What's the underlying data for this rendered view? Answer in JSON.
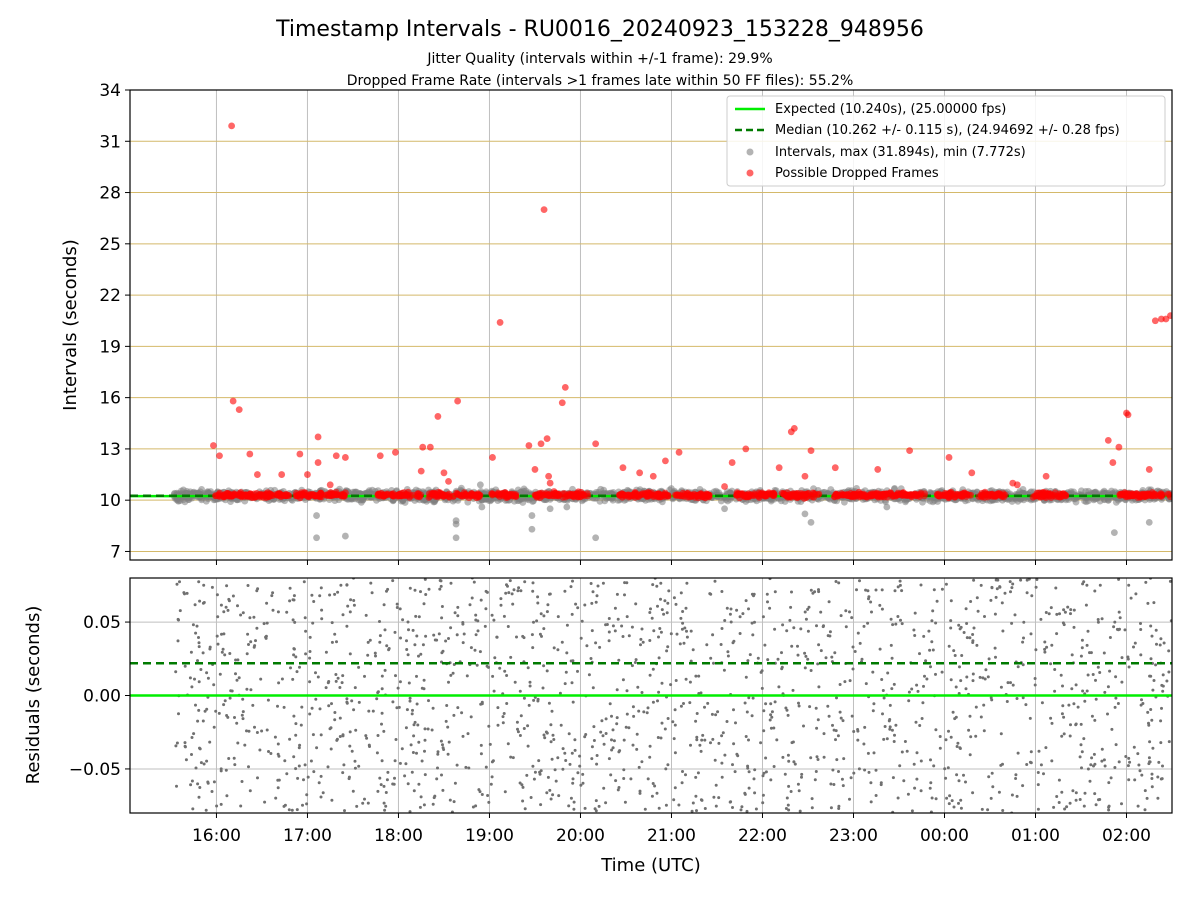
{
  "figure": {
    "title": "Timestamp Intervals - RU0016_20240923_153228_948956",
    "subtitle1": "Jitter Quality (intervals within +/-1 frame): 29.9%",
    "subtitle2": "Dropped Frame Rate (intervals >1 frames late within 50 FF files): 55.2%",
    "xlabel": "Time (UTC)"
  },
  "colors": {
    "expected": "#00ee00",
    "median": "#007a00",
    "intervals": "#808080",
    "dropped": "#ff0000",
    "hgrid_top": "#d4b96a",
    "vgrid": "#bfbfbf"
  },
  "chart_data": [
    {
      "type": "scatter",
      "panel": "top",
      "ylabel": "Intervals (seconds)",
      "xlim": [
        "15:03",
        "02:30"
      ],
      "ylim": [
        6.5,
        34
      ],
      "yticks": [
        7,
        10,
        13,
        16,
        19,
        22,
        25,
        28,
        31,
        34
      ],
      "xticks": [
        "16:00",
        "17:00",
        "18:00",
        "19:00",
        "20:00",
        "21:00",
        "22:00",
        "23:00",
        "00:00",
        "01:00",
        "02:00"
      ],
      "grid": "on",
      "legend_position": "top-right",
      "legend": [
        "Expected (10.240s), (25.00000 fps)",
        "Median (10.262 +/- 0.115 s), (24.94692 +/- 0.28 fps)",
        "Intervals, max (31.894s), min (7.772s)",
        "Possible Dropped Frames"
      ],
      "series": [
        {
          "name": "Expected (10.240s), (25.00000 fps)",
          "kind": "hline",
          "y": 10.24
        },
        {
          "name": "Median (10.262 +/- 0.115 s), (24.94692 +/- 0.28 fps)",
          "kind": "hline-dashed",
          "y": 10.262
        },
        {
          "name": "Intervals, max (31.894s), min (7.772s)",
          "kind": "scatter",
          "band": {
            "x_start": "15:32",
            "x_end": "02:30",
            "y_center": 10.26,
            "y_spread": 0.15
          },
          "points": [
            {
              "x": "17:06",
              "y": 9.1
            },
            {
              "x": "17:06",
              "y": 7.8
            },
            {
              "x": "17:25",
              "y": 7.9
            },
            {
              "x": "18:38",
              "y": 8.8
            },
            {
              "x": "18:38",
              "y": 8.6
            },
            {
              "x": "18:38",
              "y": 7.8
            },
            {
              "x": "18:54",
              "y": 10.9
            },
            {
              "x": "18:55",
              "y": 9.6
            },
            {
              "x": "19:28",
              "y": 9.1
            },
            {
              "x": "19:28",
              "y": 8.3
            },
            {
              "x": "19:40",
              "y": 9.5
            },
            {
              "x": "19:51",
              "y": 9.6
            },
            {
              "x": "20:10",
              "y": 7.8
            },
            {
              "x": "21:35",
              "y": 9.5
            },
            {
              "x": "22:28",
              "y": 9.2
            },
            {
              "x": "22:32",
              "y": 8.7
            },
            {
              "x": "23:22",
              "y": 9.6
            },
            {
              "x": "01:52",
              "y": 8.1
            },
            {
              "x": "02:15",
              "y": 8.7
            }
          ]
        },
        {
          "name": "Possible Dropped Frames",
          "kind": "scatter",
          "bands": [
            {
              "x_start": "15:59",
              "x_end": "16:49",
              "y": 10.3
            },
            {
              "x_start": "16:52",
              "x_end": "17:26",
              "y": 10.3
            },
            {
              "x_start": "17:45",
              "x_end": "17:57",
              "y": 10.3
            },
            {
              "x_start": "17:59",
              "x_end": "18:15",
              "y": 10.3
            },
            {
              "x_start": "18:20",
              "x_end": "18:54",
              "y": 10.3
            },
            {
              "x_start": "19:01",
              "x_end": "19:18",
              "y": 10.3
            },
            {
              "x_start": "19:30",
              "x_end": "20:05",
              "y": 10.3
            },
            {
              "x_start": "20:25",
              "x_end": "20:58",
              "y": 10.3
            },
            {
              "x_start": "21:02",
              "x_end": "21:25",
              "y": 10.3
            },
            {
              "x_start": "21:40",
              "x_end": "22:08",
              "y": 10.3
            },
            {
              "x_start": "22:12",
              "x_end": "22:38",
              "y": 10.3
            },
            {
              "x_start": "22:46",
              "x_end": "23:13",
              "y": 10.3
            },
            {
              "x_start": "23:13",
              "x_end": "23:47",
              "y": 10.3
            },
            {
              "x_start": "23:55",
              "x_end": "00:18",
              "y": 10.3
            },
            {
              "x_start": "00:22",
              "x_end": "00:40",
              "y": 10.3
            },
            {
              "x_start": "00:58",
              "x_end": "01:20",
              "y": 10.3
            },
            {
              "x_start": "01:55",
              "x_end": "02:30",
              "y": 10.3
            }
          ],
          "points": [
            {
              "x": "15:58",
              "y": 13.2
            },
            {
              "x": "16:02",
              "y": 12.6
            },
            {
              "x": "16:10",
              "y": 31.9
            },
            {
              "x": "16:11",
              "y": 15.8
            },
            {
              "x": "16:15",
              "y": 15.3
            },
            {
              "x": "16:22",
              "y": 12.7
            },
            {
              "x": "16:27",
              "y": 11.5
            },
            {
              "x": "16:43",
              "y": 11.5
            },
            {
              "x": "16:55",
              "y": 12.7
            },
            {
              "x": "17:00",
              "y": 11.5
            },
            {
              "x": "17:07",
              "y": 13.7
            },
            {
              "x": "17:07",
              "y": 12.2
            },
            {
              "x": "17:15",
              "y": 10.9
            },
            {
              "x": "17:19",
              "y": 12.6
            },
            {
              "x": "17:25",
              "y": 12.5
            },
            {
              "x": "17:48",
              "y": 12.6
            },
            {
              "x": "17:58",
              "y": 12.8
            },
            {
              "x": "18:15",
              "y": 11.7
            },
            {
              "x": "18:16",
              "y": 13.1
            },
            {
              "x": "18:21",
              "y": 13.1
            },
            {
              "x": "18:26",
              "y": 14.9
            },
            {
              "x": "18:30",
              "y": 11.6
            },
            {
              "x": "18:33",
              "y": 11.1
            },
            {
              "x": "18:39",
              "y": 15.8
            },
            {
              "x": "19:02",
              "y": 12.5
            },
            {
              "x": "19:07",
              "y": 20.4
            },
            {
              "x": "19:26",
              "y": 13.2
            },
            {
              "x": "19:30",
              "y": 11.8
            },
            {
              "x": "19:34",
              "y": 13.3
            },
            {
              "x": "19:36",
              "y": 27.0
            },
            {
              "x": "19:38",
              "y": 13.6
            },
            {
              "x": "19:39",
              "y": 11.4
            },
            {
              "x": "19:40",
              "y": 11.0
            },
            {
              "x": "19:48",
              "y": 15.7
            },
            {
              "x": "19:50",
              "y": 16.6
            },
            {
              "x": "20:10",
              "y": 13.3
            },
            {
              "x": "20:28",
              "y": 11.9
            },
            {
              "x": "20:39",
              "y": 11.6
            },
            {
              "x": "20:48",
              "y": 11.4
            },
            {
              "x": "20:56",
              "y": 12.3
            },
            {
              "x": "21:05",
              "y": 12.8
            },
            {
              "x": "21:35",
              "y": 10.8
            },
            {
              "x": "21:40",
              "y": 12.2
            },
            {
              "x": "21:49",
              "y": 13.0
            },
            {
              "x": "22:11",
              "y": 11.9
            },
            {
              "x": "22:19",
              "y": 14.0
            },
            {
              "x": "22:21",
              "y": 14.2
            },
            {
              "x": "22:28",
              "y": 11.4
            },
            {
              "x": "22:32",
              "y": 12.9
            },
            {
              "x": "22:48",
              "y": 11.9
            },
            {
              "x": "23:16",
              "y": 11.8
            },
            {
              "x": "23:37",
              "y": 12.9
            },
            {
              "x": "00:03",
              "y": 12.5
            },
            {
              "x": "00:18",
              "y": 11.6
            },
            {
              "x": "00:45",
              "y": 11.0
            },
            {
              "x": "00:48",
              "y": 10.9
            },
            {
              "x": "01:07",
              "y": 11.4
            },
            {
              "x": "01:48",
              "y": 13.5
            },
            {
              "x": "01:51",
              "y": 12.2
            },
            {
              "x": "01:55",
              "y": 13.1
            },
            {
              "x": "02:00",
              "y": 15.1
            },
            {
              "x": "02:01",
              "y": 15.0
            },
            {
              "x": "02:15",
              "y": 11.8
            },
            {
              "x": "02:19",
              "y": 20.5
            },
            {
              "x": "02:23",
              "y": 20.6
            },
            {
              "x": "02:26",
              "y": 20.6
            },
            {
              "x": "02:29",
              "y": 20.8
            }
          ]
        }
      ]
    },
    {
      "type": "scatter",
      "panel": "bottom",
      "ylabel": "Residuals (seconds)",
      "xlabel": "Time (UTC)",
      "xlim": [
        "15:03",
        "02:30"
      ],
      "ylim": [
        -0.08,
        0.08
      ],
      "yticks": [
        -0.05,
        0.0,
        0.05
      ],
      "ytick_labels": [
        "−0.05",
        "0.00",
        "0.05"
      ],
      "xticks": [
        "16:00",
        "17:00",
        "18:00",
        "19:00",
        "20:00",
        "21:00",
        "22:00",
        "23:00",
        "00:00",
        "01:00",
        "02:00"
      ],
      "grid": "on",
      "series": [
        {
          "name": "Expected (10.240s), (25.00000 fps)",
          "kind": "hline",
          "y": 0.0
        },
        {
          "name": "Median (10.262 +/- 0.115 s), (24.94692 +/- 0.28 fps)",
          "kind": "hline-dashed",
          "y": 0.022
        },
        {
          "name": "Residuals",
          "kind": "scatter-uniform",
          "x_start": "15:33",
          "x_end": "02:30",
          "y_range": [
            -0.08,
            0.08
          ],
          "approx_count": 1700
        }
      ]
    }
  ]
}
